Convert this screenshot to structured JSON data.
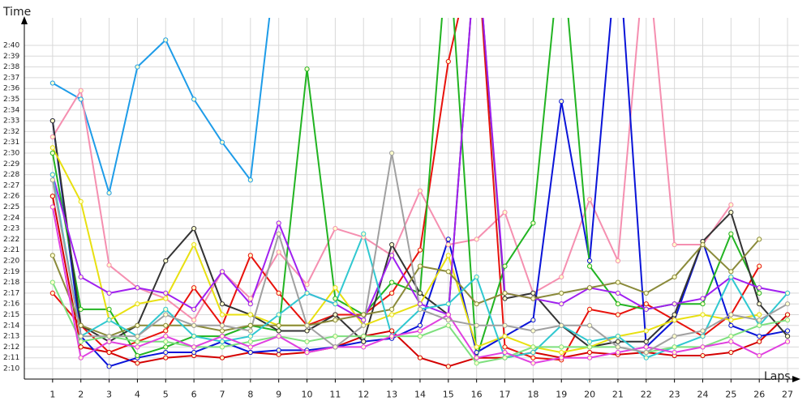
{
  "chart_data": {
    "type": "line",
    "ylabel": "Time",
    "xlabel": "Laps",
    "xlim": [
      0,
      27.4
    ],
    "ylim": [
      129,
      162
    ],
    "xticks": [
      1,
      2,
      3,
      4,
      5,
      6,
      7,
      8,
      9,
      10,
      11,
      12,
      13,
      14,
      15,
      16,
      17,
      18,
      19,
      20,
      21,
      22,
      23,
      24,
      25,
      26,
      27
    ],
    "yticks": [
      {
        "value": 130,
        "label": "2:10"
      },
      {
        "value": 131,
        "label": "2:11"
      },
      {
        "value": 132,
        "label": "2:12"
      },
      {
        "value": 133,
        "label": "2:13"
      },
      {
        "value": 134,
        "label": "2:14"
      },
      {
        "value": 135,
        "label": "2:15"
      },
      {
        "value": 136,
        "label": "2:16"
      },
      {
        "value": 137,
        "label": "2:17"
      },
      {
        "value": 138,
        "label": "2:18"
      },
      {
        "value": 139,
        "label": "2:19"
      },
      {
        "value": 140,
        "label": "2:20"
      },
      {
        "value": 141,
        "label": "2:21"
      },
      {
        "value": 142,
        "label": "2:22"
      },
      {
        "value": 143,
        "label": "2:23"
      },
      {
        "value": 144,
        "label": "2:24"
      },
      {
        "value": 145,
        "label": "2:25"
      },
      {
        "value": 146,
        "label": "2:26"
      },
      {
        "value": 147,
        "label": "2:27"
      },
      {
        "value": 148,
        "label": "2:28"
      },
      {
        "value": 149,
        "label": "2:29"
      },
      {
        "value": 150,
        "label": "2:30"
      },
      {
        "value": 151,
        "label": "2:31"
      },
      {
        "value": 152,
        "label": "2:32"
      },
      {
        "value": 153,
        "label": "2:33"
      },
      {
        "value": 154,
        "label": "2:34"
      },
      {
        "value": 155,
        "label": "2:35"
      },
      {
        "value": 156,
        "label": "2:36"
      },
      {
        "value": 157,
        "label": "2:37"
      },
      {
        "value": 158,
        "label": "2:38"
      },
      {
        "value": 159,
        "label": "2:39"
      },
      {
        "value": 160,
        "label": "2:40"
      }
    ],
    "grid": true,
    "x": [
      1,
      2,
      3,
      4,
      5,
      6,
      7,
      8,
      9,
      10,
      11,
      12,
      13,
      14,
      15,
      16,
      17,
      18,
      19,
      20,
      21,
      22,
      23,
      24,
      25,
      26,
      27
    ],
    "series": [
      {
        "color": "#1e9ce8",
        "values": [
          156.5,
          155,
          146.3,
          158,
          160.5,
          155,
          151,
          147.5,
          170,
          null,
          null,
          null,
          null,
          null,
          null,
          null,
          null,
          null,
          null,
          null,
          null,
          null,
          null,
          null,
          null,
          null,
          null
        ]
      },
      {
        "color": "#f58fb0",
        "values": [
          151.5,
          155.8,
          139.6,
          137.5,
          136.5,
          134.5,
          139,
          136.5,
          140.8,
          137.8,
          143,
          142.2,
          140.5,
          146.5,
          141.5,
          142,
          144.5,
          137,
          138.5,
          145.7,
          140,
          170,
          141.5,
          141.5,
          145.2,
          null,
          null
        ]
      },
      {
        "color": "#e8120c",
        "values": [
          137,
          134,
          131.5,
          132.5,
          133.5,
          137.5,
          134,
          140.5,
          137,
          134,
          135,
          135,
          137,
          141,
          158.5,
          170,
          132,
          131,
          130.8,
          135.5,
          135,
          136,
          134.5,
          133,
          135,
          139.5,
          null
        ]
      },
      {
        "color": "#d40000",
        "values": [
          146,
          132,
          131.5,
          130.5,
          131,
          131.2,
          131,
          131.5,
          131.3,
          131.5,
          132,
          133,
          133.5,
          131,
          130.2,
          131,
          131,
          131.5,
          131,
          131.5,
          131.3,
          131.5,
          131.2,
          131.2,
          131.5,
          132.5,
          135
        ]
      },
      {
        "color": "#0a14d8",
        "values": [
          153,
          133,
          130.2,
          131,
          131.5,
          131.5,
          132.5,
          131.5,
          131.7,
          131.7,
          132,
          132.5,
          132.8,
          134,
          142,
          131.5,
          133,
          134.5,
          154.8,
          140,
          170,
          132,
          134.5,
          141.8,
          134,
          133,
          133.5
        ]
      },
      {
        "color": "#22b422",
        "values": [
          150,
          135.5,
          135.5,
          131.2,
          132,
          133,
          133,
          134,
          133.5,
          157.8,
          136.5,
          135,
          138,
          137,
          170,
          131,
          139.5,
          143.5,
          170,
          139.5,
          136,
          135.5,
          136,
          136,
          142.5,
          137,
          null
        ]
      },
      {
        "color": "#333333",
        "values": [
          153,
          134,
          132.5,
          134,
          140,
          143,
          136,
          135,
          133.5,
          133.5,
          135,
          132.5,
          141.5,
          137,
          135,
          170,
          136.5,
          137,
          134,
          132,
          132.5,
          132.5,
          135,
          141.8,
          144.5,
          136,
          133
        ]
      },
      {
        "color": "#e8e010",
        "values": [
          150.5,
          145.5,
          134.5,
          136,
          136.5,
          141.5,
          135,
          135,
          134,
          134,
          137.5,
          134,
          135,
          136,
          140.5,
          132,
          133,
          132,
          131.5,
          132,
          133,
          133.5,
          134.5,
          135,
          134.5,
          135,
          null
        ]
      },
      {
        "color": "#a020f0",
        "values": [
          148,
          138.5,
          137,
          137.5,
          137,
          135.5,
          139,
          136,
          143.5,
          137,
          136,
          134.5,
          140.5,
          136,
          135,
          170,
          137,
          136.5,
          136,
          137.5,
          137,
          135.5,
          136,
          136.5,
          138.5,
          137.5,
          137
        ]
      },
      {
        "color": "#8a8a3a",
        "values": [
          140.5,
          134,
          133,
          134,
          134,
          134,
          133.5,
          134,
          134,
          134,
          134.5,
          135,
          135.5,
          139.5,
          139,
          136,
          137,
          136.5,
          137,
          137.5,
          138,
          137,
          138.5,
          141.5,
          139,
          142,
          null
        ]
      },
      {
        "color": "#30c8d0",
        "values": [
          148,
          133,
          134.5,
          133,
          135.5,
          133,
          132.5,
          133,
          135,
          137,
          136,
          142.5,
          133,
          135.5,
          136,
          138.5,
          131,
          131.5,
          134,
          132.5,
          133,
          131,
          132,
          133,
          138.5,
          134,
          137
        ]
      },
      {
        "color": "#7ee07e",
        "values": [
          138,
          132.5,
          133,
          132.5,
          132.5,
          132,
          132,
          132.5,
          133,
          132.5,
          133,
          133,
          133,
          133,
          134,
          130.5,
          131,
          132,
          132,
          132,
          132,
          131.5,
          132,
          132,
          133,
          134,
          134.5
        ]
      },
      {
        "color": "#e040e0",
        "values": [
          145,
          131,
          132.5,
          132,
          133,
          132,
          133,
          132,
          133,
          131.5,
          132,
          132,
          133,
          133.5,
          135,
          131,
          131.5,
          130.5,
          131,
          131,
          131.5,
          132,
          131.5,
          132,
          132.5,
          131.2,
          132.5
        ]
      },
      {
        "color": "#a0a0a0",
        "values": [
          147.5,
          133,
          133,
          133,
          135,
          134,
          134,
          133.5,
          142.5,
          134,
          132,
          134,
          150,
          135.5,
          134.5,
          134,
          134,
          133.5,
          134,
          134,
          132,
          131.5,
          133,
          133.5,
          135,
          134.5,
          136
        ]
      }
    ]
  }
}
